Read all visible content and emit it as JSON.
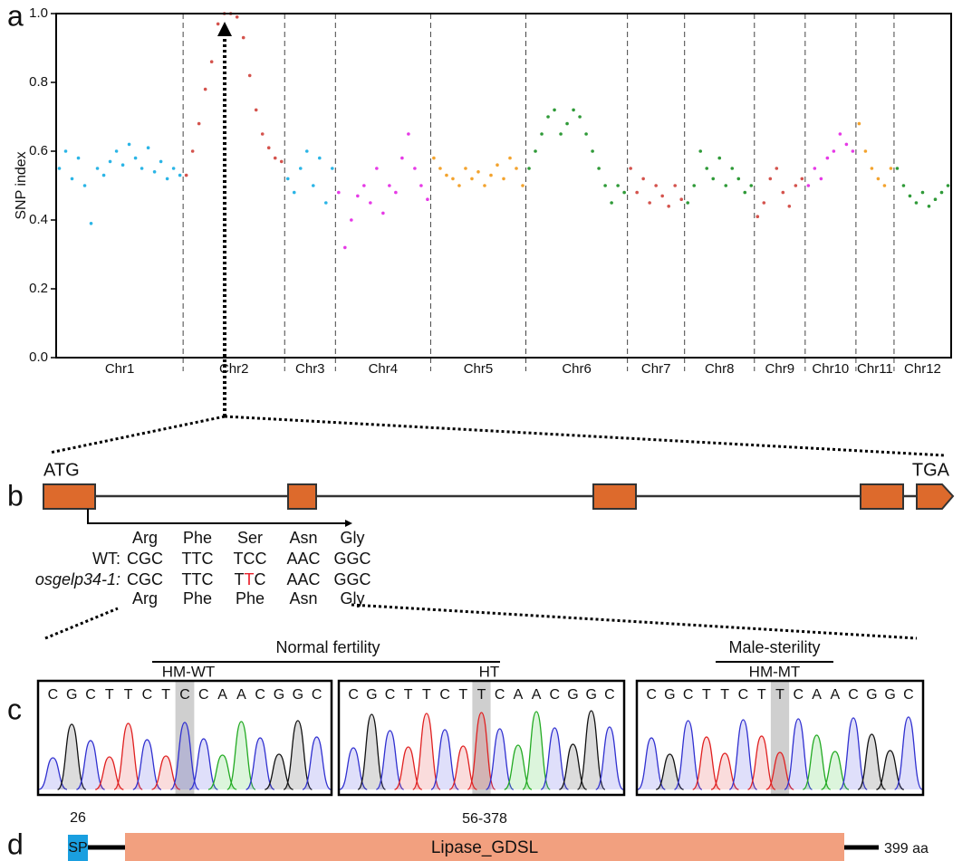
{
  "panel_labels": [
    "a",
    "b",
    "c",
    "d"
  ],
  "chart_data": {
    "type": "scatter",
    "ylabel": "SNP index",
    "ylim": [
      0,
      1
    ],
    "yticks": [
      {
        "value": 0,
        "label": "0.0"
      },
      {
        "value": 0.2,
        "label": "0.2"
      },
      {
        "value": 0.4,
        "label": "0.4"
      },
      {
        "value": 0.6,
        "label": "0.6"
      },
      {
        "value": 0.8,
        "label": "0.8"
      },
      {
        "value": 1,
        "label": "1.0"
      }
    ],
    "series": [
      {
        "name": "Chr1",
        "color": "#2bb5e6",
        "values": [
          0.55,
          0.6,
          0.52,
          0.58,
          0.5,
          0.39,
          0.55,
          0.53,
          0.57,
          0.6,
          0.56,
          0.62,
          0.58,
          0.55,
          0.61,
          0.54,
          0.57,
          0.52,
          0.55,
          0.53
        ]
      },
      {
        "name": "Chr2",
        "color": "#d4534d",
        "values": [
          0.53,
          0.6,
          0.68,
          0.78,
          0.86,
          0.97,
          1.0,
          1.0,
          0.99,
          0.93,
          0.82,
          0.72,
          0.65,
          0.61,
          0.58,
          0.57
        ]
      },
      {
        "name": "Chr3",
        "color": "#2bb5e6",
        "values": [
          0.52,
          0.48,
          0.55,
          0.6,
          0.5,
          0.58,
          0.45,
          0.55
        ]
      },
      {
        "name": "Chr4",
        "color": "#e63ae6",
        "values": [
          0.48,
          0.32,
          0.4,
          0.47,
          0.5,
          0.45,
          0.55,
          0.42,
          0.5,
          0.48,
          0.58,
          0.65,
          0.55,
          0.5,
          0.46
        ]
      },
      {
        "name": "Chr5",
        "color": "#f3a32e",
        "values": [
          0.58,
          0.55,
          0.53,
          0.52,
          0.5,
          0.55,
          0.52,
          0.54,
          0.5,
          0.53,
          0.56,
          0.52,
          0.58,
          0.55,
          0.5
        ]
      },
      {
        "name": "Chr6",
        "color": "#2f9a38",
        "values": [
          0.55,
          0.6,
          0.65,
          0.7,
          0.72,
          0.65,
          0.68,
          0.72,
          0.7,
          0.65,
          0.6,
          0.55,
          0.5,
          0.45,
          0.5,
          0.48
        ]
      },
      {
        "name": "Chr7",
        "color": "#d4534d",
        "values": [
          0.55,
          0.48,
          0.52,
          0.45,
          0.5,
          0.47,
          0.44,
          0.5,
          0.46
        ]
      },
      {
        "name": "Chr8",
        "color": "#2f9a38",
        "values": [
          0.45,
          0.5,
          0.6,
          0.55,
          0.52,
          0.58,
          0.5,
          0.55,
          0.52,
          0.48,
          0.5
        ]
      },
      {
        "name": "Chr9",
        "color": "#d4534d",
        "values": [
          0.41,
          0.45,
          0.52,
          0.55,
          0.48,
          0.44,
          0.5,
          0.52
        ]
      },
      {
        "name": "Chr10",
        "color": "#e63ae6",
        "values": [
          0.5,
          0.55,
          0.52,
          0.58,
          0.6,
          0.65,
          0.62,
          0.6
        ]
      },
      {
        "name": "Chr11",
        "color": "#f3a32e",
        "values": [
          0.68,
          0.6,
          0.55,
          0.52,
          0.5,
          0.55
        ]
      },
      {
        "name": "Chr12",
        "color": "#2f9a38",
        "values": [
          0.55,
          0.5,
          0.47,
          0.45,
          0.48,
          0.44,
          0.46,
          0.48,
          0.5
        ]
      }
    ]
  },
  "gene": {
    "start": "ATG",
    "end": "TGA"
  },
  "codons": {
    "wt_aa": [
      "Arg",
      "Phe",
      "Ser",
      "Asn",
      "Gly"
    ],
    "wt_label": "WT:",
    "wt": [
      "CGC",
      "TTC",
      "TCC",
      "AAC",
      "GGC"
    ],
    "mut_label": "osgelp34-1:",
    "mut": [
      "CGC",
      "TTC",
      {
        "parts": [
          "T",
          "T",
          "C"
        ],
        "highlight": 1,
        "color": "#e8202a"
      },
      "AAC",
      "GGC"
    ],
    "mut_aa": [
      "Arg",
      "Phe",
      {
        "label": "Phe",
        "color": "#e8202a"
      },
      "Asn",
      "Gly"
    ]
  },
  "groups": [
    {
      "label": "Normal fertility"
    },
    {
      "label": "Male-sterility"
    }
  ],
  "chromatograms": [
    {
      "label": "HM-WT",
      "bases": [
        "C",
        "G",
        "C",
        "T",
        "T",
        "C",
        "T",
        "C",
        "C",
        "A",
        "A",
        "C",
        "G",
        "G",
        "C"
      ],
      "highlight": 7
    },
    {
      "label": "HT",
      "bases": [
        "C",
        "G",
        "C",
        "T",
        "T",
        "C",
        "T",
        "T",
        "C",
        "A",
        "A",
        "C",
        "G",
        "G",
        "C"
      ],
      "highlight": 7
    },
    {
      "label": "HM-MT",
      "bases": [
        "C",
        "G",
        "C",
        "T",
        "T",
        "C",
        "T",
        "T",
        "C",
        "A",
        "A",
        "C",
        "G",
        "G",
        "C"
      ],
      "highlight": 7
    }
  ],
  "protein": {
    "sp_end": "26",
    "sp": "SP",
    "domain_range": "56-378",
    "domain": "Lipase_GDSL",
    "length": "399 aa"
  }
}
